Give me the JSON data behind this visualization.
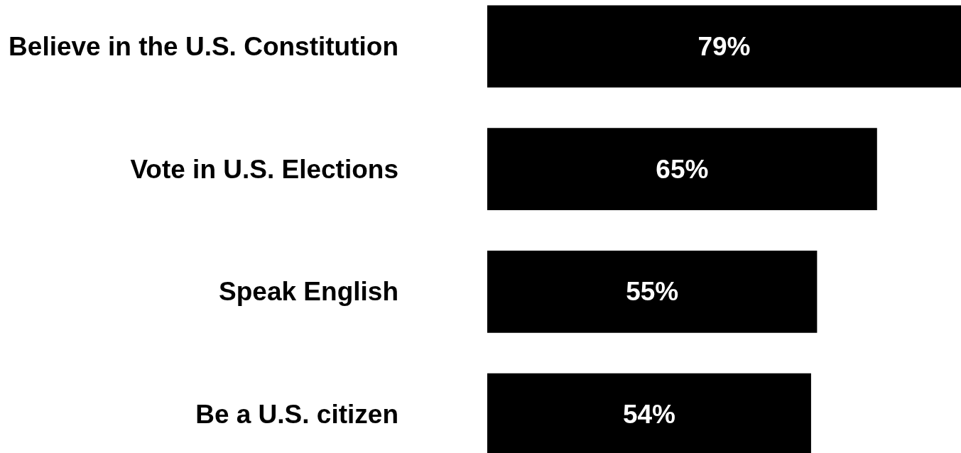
{
  "chart_data": {
    "type": "bar",
    "orientation": "horizontal",
    "categories": [
      "Believe in the U.S. Constitution",
      "Vote in U.S. Elections",
      "Speak English",
      "Be a U.S. citizen"
    ],
    "values": [
      79,
      65,
      55,
      54
    ],
    "color": "#000000",
    "value_labels": [
      "79%",
      "65%",
      "55%",
      "54%"
    ],
    "tick_labels": "y"
  }
}
